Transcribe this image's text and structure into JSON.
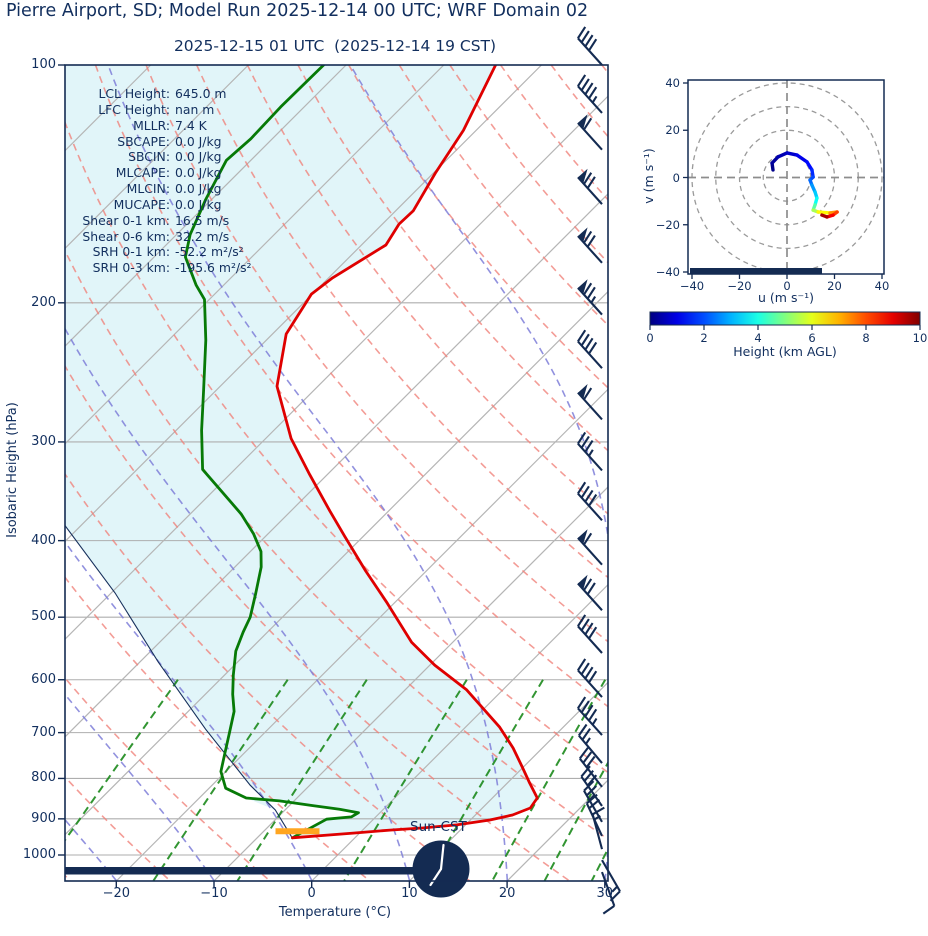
{
  "title": "Pierre Airport, SD; Model Run 2025-12-14 00 UTC; WRF Domain 02",
  "subtitle": "2025-12-15 01 UTC  (2025-12-14 19 CST)",
  "colors": {
    "text_navy": "#122f5e",
    "barb_navy": "#142b52",
    "temperature": "#df0000",
    "dewpoint": "#077a07",
    "shade_cyan": "#e1f5f9",
    "dry_adiabat": "#f08078",
    "moist_adiabat": "#7e7ed8",
    "mixing_ratio": "#1c8a1c",
    "isotherm_gray": "#b5b5b5",
    "orange_marker": "#ffa520"
  },
  "skewt": {
    "ylabel": "Isobaric Height (hPa)",
    "xlabel": "Temperature (°C)",
    "pressure_ticks": [
      "100",
      "200",
      "300",
      "400",
      "500",
      "600",
      "700",
      "800",
      "900",
      "1000"
    ],
    "pressure_tick_values": [
      100,
      200,
      300,
      400,
      500,
      600,
      700,
      800,
      900,
      1000
    ],
    "temp_ticks": [
      "−20",
      "−10",
      "0",
      "10",
      "20",
      "30"
    ],
    "temp_tick_values": [
      -20,
      -10,
      0,
      10,
      20,
      30
    ],
    "annotation": "Sun-CST",
    "stats": [
      {
        "label": "LCL Height:",
        "value": "645.0 m"
      },
      {
        "label": "LFC Height:",
        "value": "nan m"
      },
      {
        "label": "MLLR:",
        "value": "7.4 K"
      },
      {
        "label": "SBCAPE:",
        "value": "0.0 J/kg"
      },
      {
        "label": "SBCIN:",
        "value": "0.0 J/kg"
      },
      {
        "label": "MLCAPE:",
        "value": "0.0 J/kg"
      },
      {
        "label": "MLCIN:",
        "value": "0.0 J/kg"
      },
      {
        "label": "MUCAPE:",
        "value": "0.0 J/kg"
      },
      {
        "label": "Shear 0-1 km:",
        "value": "16.5 m/s"
      },
      {
        "label": "Shear 0-6 km:",
        "value": "32.2 m/s"
      },
      {
        "label": "SRH 0-1 km:",
        "value": "-52.2 m²/s²"
      },
      {
        "label": "SRH 0-3 km:",
        "value": "-195.6 m²/s²"
      }
    ]
  },
  "hodograph": {
    "xlabel": "u (m s⁻¹)",
    "ylabel": "v (m s⁻¹)",
    "x_ticks": [
      "−40",
      "−20",
      "0",
      "20",
      "40"
    ],
    "y_ticks": [
      "40",
      "20",
      "0",
      "−20",
      "−40"
    ],
    "x_tick_values": [
      -40,
      -20,
      0,
      20,
      40
    ],
    "y_tick_values": [
      40,
      20,
      0,
      -20,
      -40
    ],
    "ring_radii": [
      10,
      20,
      30,
      40
    ]
  },
  "colorbar": {
    "label": "Height (km AGL)",
    "ticks": [
      "0",
      "2",
      "4",
      "6",
      "8",
      "10"
    ],
    "tick_values": [
      0,
      2,
      4,
      6,
      8,
      10
    ]
  },
  "chart_data": {
    "type": "skewt-sounding",
    "pressure_range_hPa": [
      100,
      1078
    ],
    "temperature_axis_C": [
      -25,
      32
    ],
    "temperature_profile": {
      "pressure_hPa": [
        100,
        121,
        137,
        153,
        159,
        169,
        186,
        195,
        219,
        255,
        297,
        330,
        367,
        395,
        437,
        480,
        538,
        575,
        618,
        689,
        732,
        774,
        811,
        847,
        872,
        890,
        903,
        916,
        924,
        930,
        938,
        943,
        951
      ],
      "temp_C": [
        -64.7,
        -61.3,
        -59.8,
        -58.2,
        -58.3,
        -57.5,
        -59.6,
        -60.1,
        -58.6,
        -54.2,
        -47.4,
        -41.8,
        -36.0,
        -31.9,
        -26.2,
        -20.7,
        -14.2,
        -9.5,
        -3.7,
        3.5,
        7.0,
        9.9,
        12.3,
        14.6,
        14.9,
        13.8,
        12.0,
        9.1,
        6.0,
        2.8,
        -0.5,
        -2.8,
        -6.4
      ]
    },
    "dewpoint_profile": {
      "pressure_hPa": [
        99,
        113,
        124,
        132,
        148,
        164,
        175,
        190,
        198,
        223,
        258,
        290,
        325,
        347,
        370,
        392,
        413,
        432,
        466,
        500,
        522,
        552,
        592,
        626,
        658,
        700,
        745,
        784,
        823,
        847,
        854,
        866,
        875,
        884,
        895,
        901,
        951
      ],
      "temp_C": [
        -82.3,
        -82.4,
        -82.2,
        -82.5,
        -80.6,
        -78.6,
        -76.8,
        -72.8,
        -70.5,
        -66.2,
        -61.3,
        -57.4,
        -53.3,
        -49.0,
        -44.8,
        -41.5,
        -38.9,
        -37.3,
        -35.2,
        -33.3,
        -32.5,
        -31.3,
        -29.1,
        -27.2,
        -25.3,
        -23.6,
        -21.9,
        -20.5,
        -18.3,
        -15.2,
        -11.5,
        -7.6,
        -4.5,
        -2.2,
        -2.5,
        -4.8,
        -6.4
      ]
    },
    "parcel_trace": {
      "pressure_hPa": [
        383,
        466,
        570,
        693,
        816,
        877,
        948
      ],
      "temp_C": [
        -61.6,
        -49.6,
        -38.1,
        -26.4,
        -16.1,
        -11.0,
        -6.6
      ]
    },
    "lcl_marker": {
      "pressure_hPa": 933,
      "temp_from_C": -8.8,
      "temp_to_C": -4.3
    },
    "wind_barbs": [
      {
        "p": 100,
        "angle": 318,
        "pennants": 0,
        "fulls": 4,
        "halfs": 0
      },
      {
        "p": 115,
        "angle": 318,
        "pennants": 0,
        "fulls": 4,
        "halfs": 1
      },
      {
        "p": 128,
        "angle": 318,
        "pennants": 1,
        "fulls": 1,
        "halfs": 0
      },
      {
        "p": 150,
        "angle": 318,
        "pennants": 1,
        "fulls": 2,
        "halfs": 0
      },
      {
        "p": 178,
        "angle": 318,
        "pennants": 1,
        "fulls": 2,
        "halfs": 0
      },
      {
        "p": 207,
        "angle": 318,
        "pennants": 1,
        "fulls": 2,
        "halfs": 1
      },
      {
        "p": 242,
        "angle": 318,
        "pennants": 0,
        "fulls": 4,
        "halfs": 0
      },
      {
        "p": 281,
        "angle": 318,
        "pennants": 1,
        "fulls": 1,
        "halfs": 0
      },
      {
        "p": 326,
        "angle": 318,
        "pennants": 0,
        "fulls": 3,
        "halfs": 1
      },
      {
        "p": 377,
        "angle": 318,
        "pennants": 0,
        "fulls": 4,
        "halfs": 0
      },
      {
        "p": 429,
        "angle": 318,
        "pennants": 1,
        "fulls": 1,
        "halfs": 0
      },
      {
        "p": 490,
        "angle": 318,
        "pennants": 1,
        "fulls": 2,
        "halfs": 0
      },
      {
        "p": 555,
        "angle": 318,
        "pennants": 0,
        "fulls": 4,
        "halfs": 0
      },
      {
        "p": 631,
        "angle": 318,
        "pennants": 0,
        "fulls": 4,
        "halfs": 0
      },
      {
        "p": 705,
        "angle": 318,
        "pennants": 0,
        "fulls": 4,
        "halfs": 1
      },
      {
        "p": 765,
        "angle": 320,
        "pennants": 0,
        "fulls": 2,
        "halfs": 1
      },
      {
        "p": 820,
        "angle": 322,
        "pennants": 0,
        "fulls": 3,
        "halfs": 0
      },
      {
        "p": 867,
        "angle": 325,
        "pennants": 0,
        "fulls": 3,
        "halfs": 0
      },
      {
        "p": 908,
        "angle": 330,
        "pennants": 0,
        "fulls": 2,
        "halfs": 1
      },
      {
        "p": 946,
        "angle": 335,
        "pennants": 0,
        "fulls": 2,
        "halfs": 0
      },
      {
        "p": 983,
        "angle": 345,
        "pennants": 0,
        "fulls": 1,
        "halfs": 1
      },
      {
        "p": 1015,
        "angle": 150,
        "pennants": 0,
        "fulls": 1,
        "halfs": 1
      },
      {
        "p": 1051,
        "angle": 160,
        "pennants": 0,
        "fulls": 1,
        "halfs": 0
      }
    ],
    "hodograph_trace": {
      "u_ms": [
        -5.9,
        -6.3,
        -3.8,
        0.0,
        4.2,
        8.4,
        10.5,
        11.0,
        9.7,
        10.5,
        11.8,
        12.6,
        11.8,
        11.0,
        13.1,
        18.1,
        21.1,
        19.4,
        16.8,
        14.7
      ],
      "v_ms": [
        3.2,
        6.1,
        8.7,
        10.4,
        9.5,
        6.6,
        3.2,
        0.2,
        -1.1,
        -3.2,
        -6.1,
        -8.7,
        -11.6,
        -13.8,
        -14.6,
        -15.0,
        -14.6,
        -15.9,
        -16.7,
        -15.9
      ],
      "height_km": [
        0,
        0.2,
        0.4,
        0.6,
        0.9,
        1.2,
        1.5,
        1.8,
        2.1,
        2.5,
        3.0,
        3.5,
        4.2,
        5.0,
        5.8,
        6.8,
        7.8,
        8.5,
        9.2,
        10.0
      ],
      "axis_limits": [
        -40,
        40
      ],
      "colormap": "jet",
      "colormap_range_km": [
        0,
        10
      ]
    },
    "indices": {
      "LCL_height_m": 645.0,
      "LFC_height_m": null,
      "MLLR_K": 7.4,
      "SBCAPE_Jkg": 0.0,
      "SBCIN_Jkg": 0.0,
      "MLCAPE_Jkg": 0.0,
      "MLCIN_Jkg": 0.0,
      "MUCAPE_Jkg": 0.0,
      "shear_0_1km_ms": 16.5,
      "shear_0_6km_ms": 32.2,
      "SRH_0_1km_m2s2": -52.2,
      "SRH_0_3km_m2s2": -195.6
    },
    "clock_time_local": "19:00"
  }
}
